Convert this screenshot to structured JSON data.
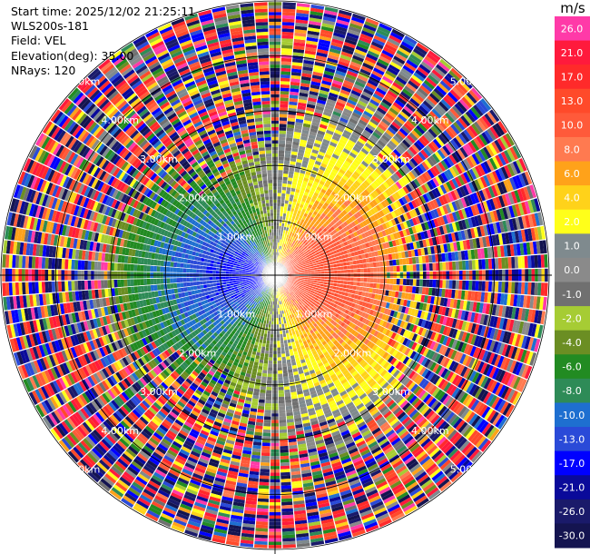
{
  "info": {
    "start_time": "Start time: 2025/12/02 21:25:11",
    "site": "WLS200s-181",
    "field": "Field: VEL",
    "elevation": "Elevation(deg): 35.00",
    "nrays": "NRays: 120"
  },
  "colorbar": {
    "unit": "m/s",
    "levels": [
      {
        "label": "26.0",
        "color": "#ff3aa8"
      },
      {
        "label": "21.0",
        "color": "#ff1a3c"
      },
      {
        "label": "17.0",
        "color": "#ff2a2a"
      },
      {
        "label": "13.0",
        "color": "#ff4a2a"
      },
      {
        "label": "10.0",
        "color": "#ff5a3a"
      },
      {
        "label": "8.0",
        "color": "#ff7a50"
      },
      {
        "label": "6.0",
        "color": "#ffa21a"
      },
      {
        "label": "4.0",
        "color": "#ffd21a"
      },
      {
        "label": "2.0",
        "color": "#ffff1a"
      },
      {
        "label": "1.0",
        "color": "#7f8a8e"
      },
      {
        "label": "0.0",
        "color": "#8a8a8a"
      },
      {
        "label": "-1.0",
        "color": "#707070"
      },
      {
        "label": "-2.0",
        "color": "#a6cc34"
      },
      {
        "label": "-4.0",
        "color": "#6b8e23"
      },
      {
        "label": "-6.0",
        "color": "#228b22"
      },
      {
        "label": "-8.0",
        "color": "#2e8b57"
      },
      {
        "label": "-10.0",
        "color": "#1e6fd0"
      },
      {
        "label": "-13.0",
        "color": "#2a4ad8"
      },
      {
        "label": "-17.0",
        "color": "#0000ff"
      },
      {
        "label": "-21.0",
        "color": "#0a0a9a"
      },
      {
        "label": "-26.0",
        "color": "#1a1a6a"
      },
      {
        "label": "-30.0",
        "color": "#141450"
      }
    ]
  },
  "chart_data": {
    "type": "heatmap",
    "projection": "polar PPI",
    "nrays": 120,
    "rings_km": [
      1.0,
      2.0,
      3.0,
      4.0,
      5.0
    ],
    "range_labels": [
      "1.00km",
      "2.00km",
      "3.00km",
      "4.00km",
      "5.00km"
    ],
    "max_range_km": 5.0,
    "velocity_range_ms": [
      -30.0,
      26.0
    ],
    "pattern": {
      "description_values": "positive (receding) velocities to the east, negative (approaching) to the west, noisy values beyond ~2.5 km",
      "east_peak_ms": 17.0,
      "west_peak_ms": -17.0
    }
  }
}
